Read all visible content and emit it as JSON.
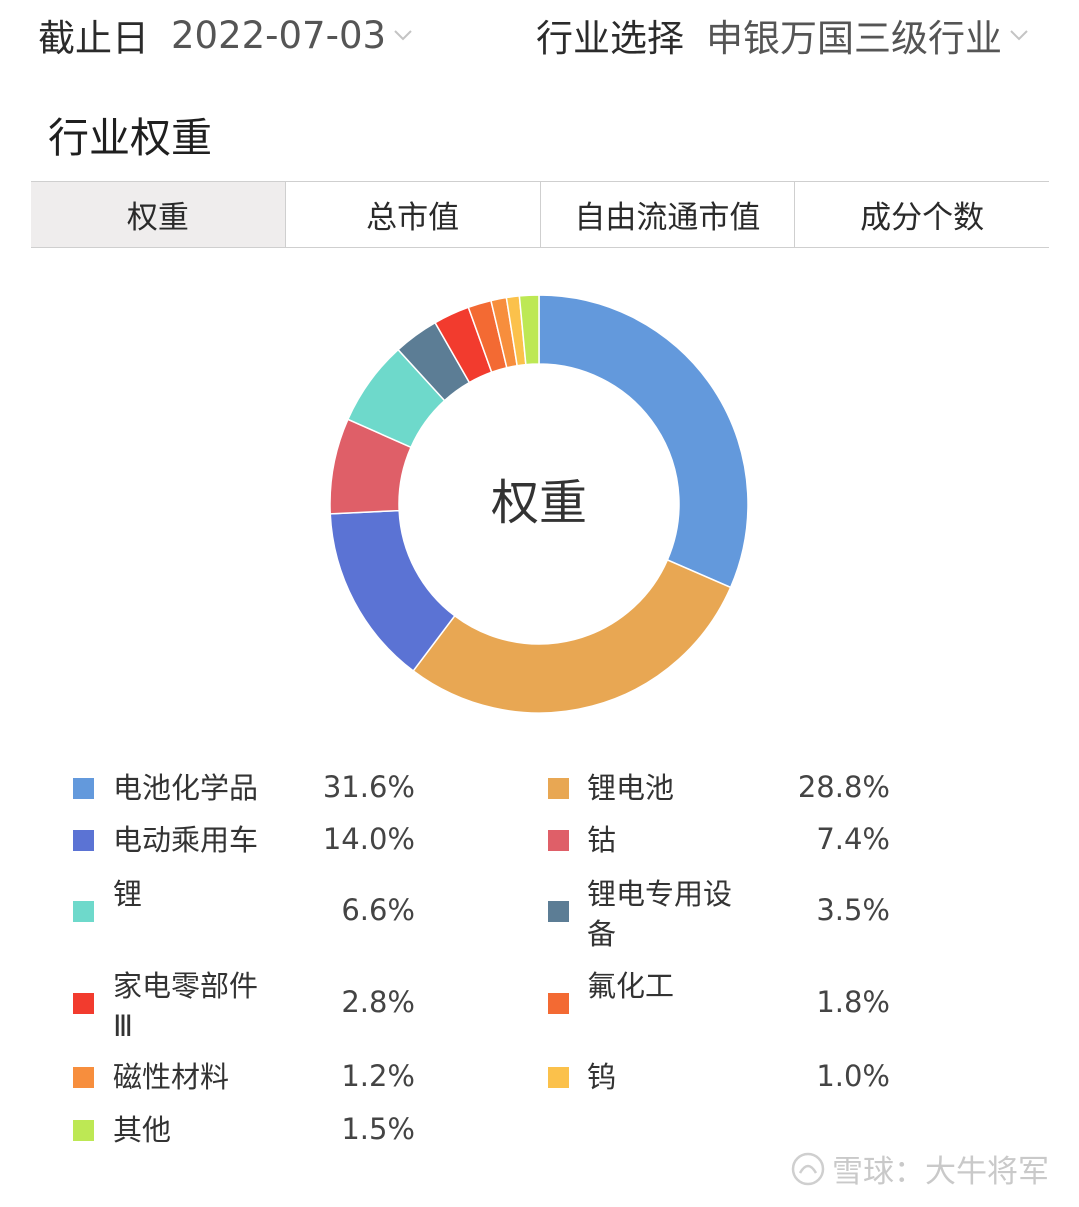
{
  "filters": {
    "date_label": "截止日",
    "date_value": "2022-07-03",
    "industry_label": "行业选择",
    "industry_value": "申银万国三级行业"
  },
  "section_title": "行业权重",
  "tabs": [
    {
      "label": "权重",
      "active": true
    },
    {
      "label": "总市值",
      "active": false
    },
    {
      "label": "自由流通市值",
      "active": false
    },
    {
      "label": "成分个数",
      "active": false
    }
  ],
  "chart_data": {
    "type": "pie",
    "style": "donut",
    "center_label": "权重",
    "slices": [
      {
        "name": "电池化学品",
        "value": 31.6,
        "label": "31.6%",
        "color": "#6399dc"
      },
      {
        "name": "锂电池",
        "value": 28.8,
        "label": "28.8%",
        "color": "#e8a753"
      },
      {
        "name": "电动乘用车",
        "value": 14.0,
        "label": "14.0%",
        "color": "#5b73d4"
      },
      {
        "name": "钴",
        "value": 7.4,
        "label": "7.4%",
        "color": "#df5f68"
      },
      {
        "name": "锂",
        "value": 6.6,
        "label": "6.6%",
        "color": "#6ed9cb"
      },
      {
        "name": "锂电专用设备",
        "value": 3.5,
        "label": "3.5%",
        "color": "#5c7d95"
      },
      {
        "name": "家电零部件Ⅲ",
        "value": 2.8,
        "label": "2.8%",
        "color": "#f23b2e"
      },
      {
        "name": "氟化工",
        "value": 1.8,
        "label": "1.8%",
        "color": "#f36a33"
      },
      {
        "name": "磁性材料",
        "value": 1.2,
        "label": "1.2%",
        "color": "#f78e3d"
      },
      {
        "name": "钨",
        "value": 1.0,
        "label": "1.0%",
        "color": "#fbc14b"
      },
      {
        "name": "其他",
        "value": 1.5,
        "label": "1.5%",
        "color": "#bde854"
      }
    ]
  },
  "watermark": "雪球：大牛将军"
}
